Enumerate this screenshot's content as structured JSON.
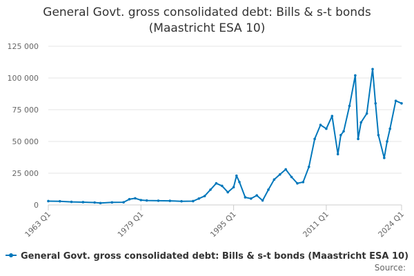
{
  "chart_data": {
    "type": "line",
    "title": "General Govt. gross consolidated debt: Bills & s-t bonds\n(Maastricht ESA 10)",
    "xlabel": "",
    "ylabel": "",
    "x_ticks": [
      "1963 Q1",
      "1979 Q1",
      "1995 Q1",
      "2011 Q1",
      "2024 Q1"
    ],
    "y_ticks": [
      "0",
      "25 000",
      "50 000",
      "75 000",
      "100 000",
      "125 000"
    ],
    "ylim": [
      0,
      125000
    ],
    "xlim": [
      "1963 Q1",
      "2024 Q1"
    ],
    "grid": true,
    "legend_position": "bottom",
    "color": "#0077bb",
    "series": [
      {
        "name": "General Govt. gross consolidated debt: Bills & s-t bonds (Maastricht ESA 10)",
        "points": [
          [
            "1963 Q1",
            3000
          ],
          [
            "1965 Q1",
            2900
          ],
          [
            "1967 Q1",
            2400
          ],
          [
            "1969 Q1",
            2200
          ],
          [
            "1971 Q1",
            1900
          ],
          [
            "1972 Q1",
            1500
          ],
          [
            "1974 Q1",
            2000
          ],
          [
            "1976 Q1",
            2100
          ],
          [
            "1977 Q1",
            4500
          ],
          [
            "1978 Q1",
            5200
          ],
          [
            "1979 Q1",
            3800
          ],
          [
            "1980 Q1",
            3500
          ],
          [
            "1982 Q1",
            3300
          ],
          [
            "1984 Q1",
            3200
          ],
          [
            "1986 Q1",
            2900
          ],
          [
            "1988 Q1",
            3000
          ],
          [
            "1989 Q1",
            5000
          ],
          [
            "1990 Q1",
            7000
          ],
          [
            "1991 Q1",
            12000
          ],
          [
            "1992 Q1",
            17000
          ],
          [
            "1993 Q1",
            15000
          ],
          [
            "1994 Q1",
            10000
          ],
          [
            "1995 Q1",
            14000
          ],
          [
            "1995 Q3",
            23000
          ],
          [
            "1996 Q1",
            18000
          ],
          [
            "1997 Q1",
            6000
          ],
          [
            "1998 Q1",
            5000
          ],
          [
            "1999 Q1",
            7500
          ],
          [
            "2000 Q1",
            3500
          ],
          [
            "2001 Q1",
            12000
          ],
          [
            "2002 Q1",
            20000
          ],
          [
            "2003 Q1",
            24000
          ],
          [
            "2004 Q1",
            28000
          ],
          [
            "2005 Q1",
            22000
          ],
          [
            "2006 Q1",
            17000
          ],
          [
            "2007 Q1",
            18000
          ],
          [
            "2008 Q1",
            30000
          ],
          [
            "2009 Q1",
            52000
          ],
          [
            "2010 Q1",
            63000
          ],
          [
            "2011 Q1",
            60000
          ],
          [
            "2012 Q1",
            70000
          ],
          [
            "2013 Q1",
            40000
          ],
          [
            "2013 Q3",
            55000
          ],
          [
            "2014 Q1",
            58000
          ],
          [
            "2015 Q1",
            78000
          ],
          [
            "2016 Q1",
            102000
          ],
          [
            "2016 Q3",
            52000
          ],
          [
            "2017 Q1",
            65000
          ],
          [
            "2018 Q1",
            72000
          ],
          [
            "2019 Q1",
            107000
          ],
          [
            "2019 Q3",
            80000
          ],
          [
            "2020 Q1",
            55000
          ],
          [
            "2021 Q1",
            37000
          ],
          [
            "2021 Q3",
            50000
          ],
          [
            "2022 Q1",
            60000
          ],
          [
            "2023 Q1",
            82000
          ],
          [
            "2024 Q1",
            80000
          ]
        ]
      }
    ]
  },
  "source_label": "Source:"
}
